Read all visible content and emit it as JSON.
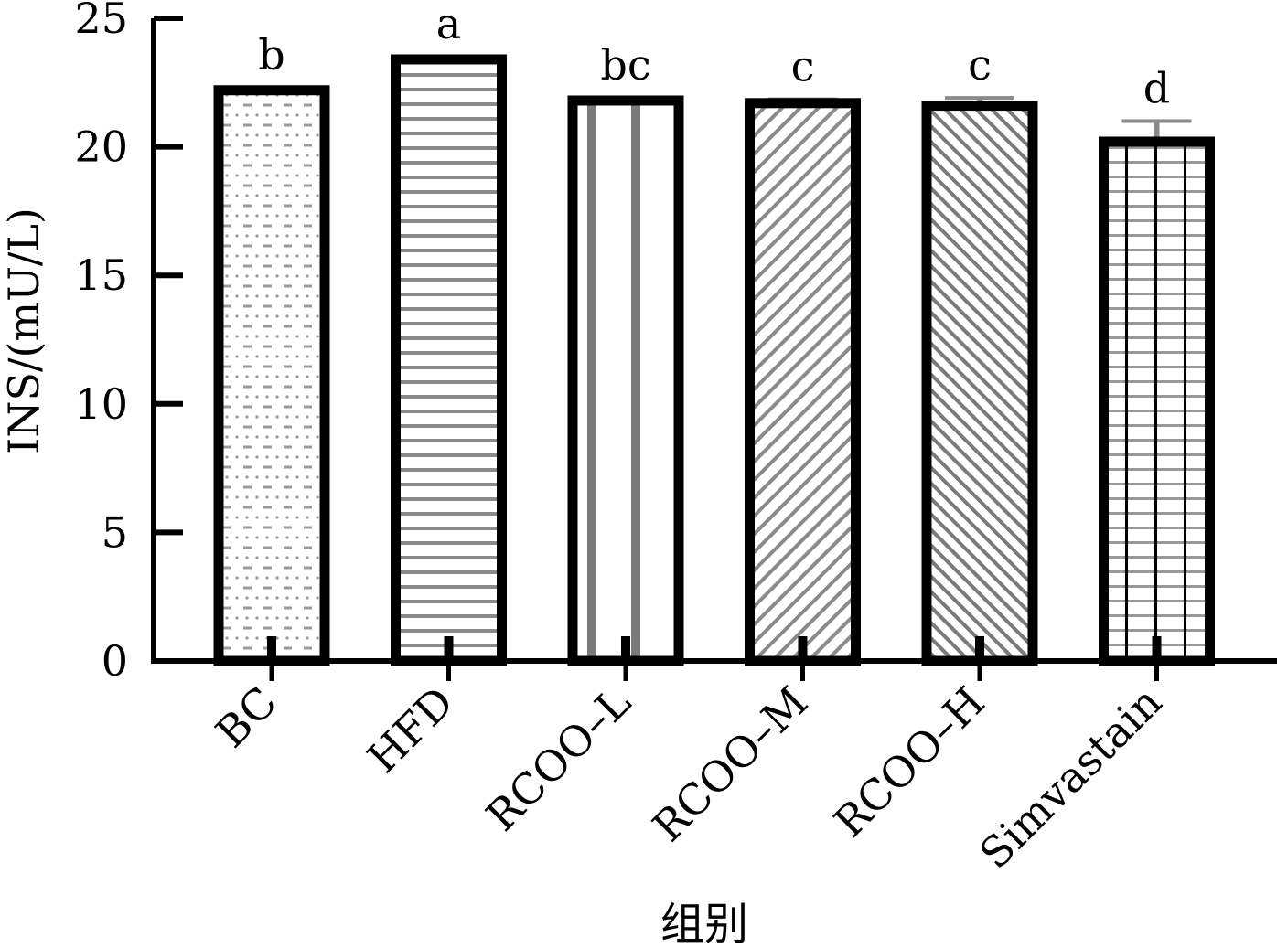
{
  "chart_data": {
    "type": "bar",
    "title": "",
    "xlabel": "组别",
    "ylabel": "INS/(mU/L)",
    "ylim": [
      0,
      25
    ],
    "yticks": [
      0,
      5,
      10,
      15,
      20,
      25
    ],
    "ytick_labels": [
      "0",
      "5",
      "10",
      "15",
      "20",
      "25"
    ],
    "categories": [
      "BC",
      "HFD",
      "RCOO–L",
      "RCOO–M",
      "RCOO–H",
      "Simvastain"
    ],
    "values": [
      22.2,
      23.4,
      21.8,
      21.7,
      21.6,
      20.2
    ],
    "errors": [
      0.1,
      0.1,
      0.1,
      0.15,
      0.3,
      0.8
    ],
    "significance": [
      "b",
      "a",
      "bc",
      "c",
      "c",
      "d"
    ],
    "patterns": [
      "dots-dashes",
      "horizontal-stripes",
      "vertical-stripes",
      "diagonal-hatch",
      "diagonal-hatch-dense",
      "grid"
    ],
    "grid": false,
    "legend": "none",
    "bar_outline_color": "#000000",
    "pattern_color": "#8a8a8a"
  }
}
